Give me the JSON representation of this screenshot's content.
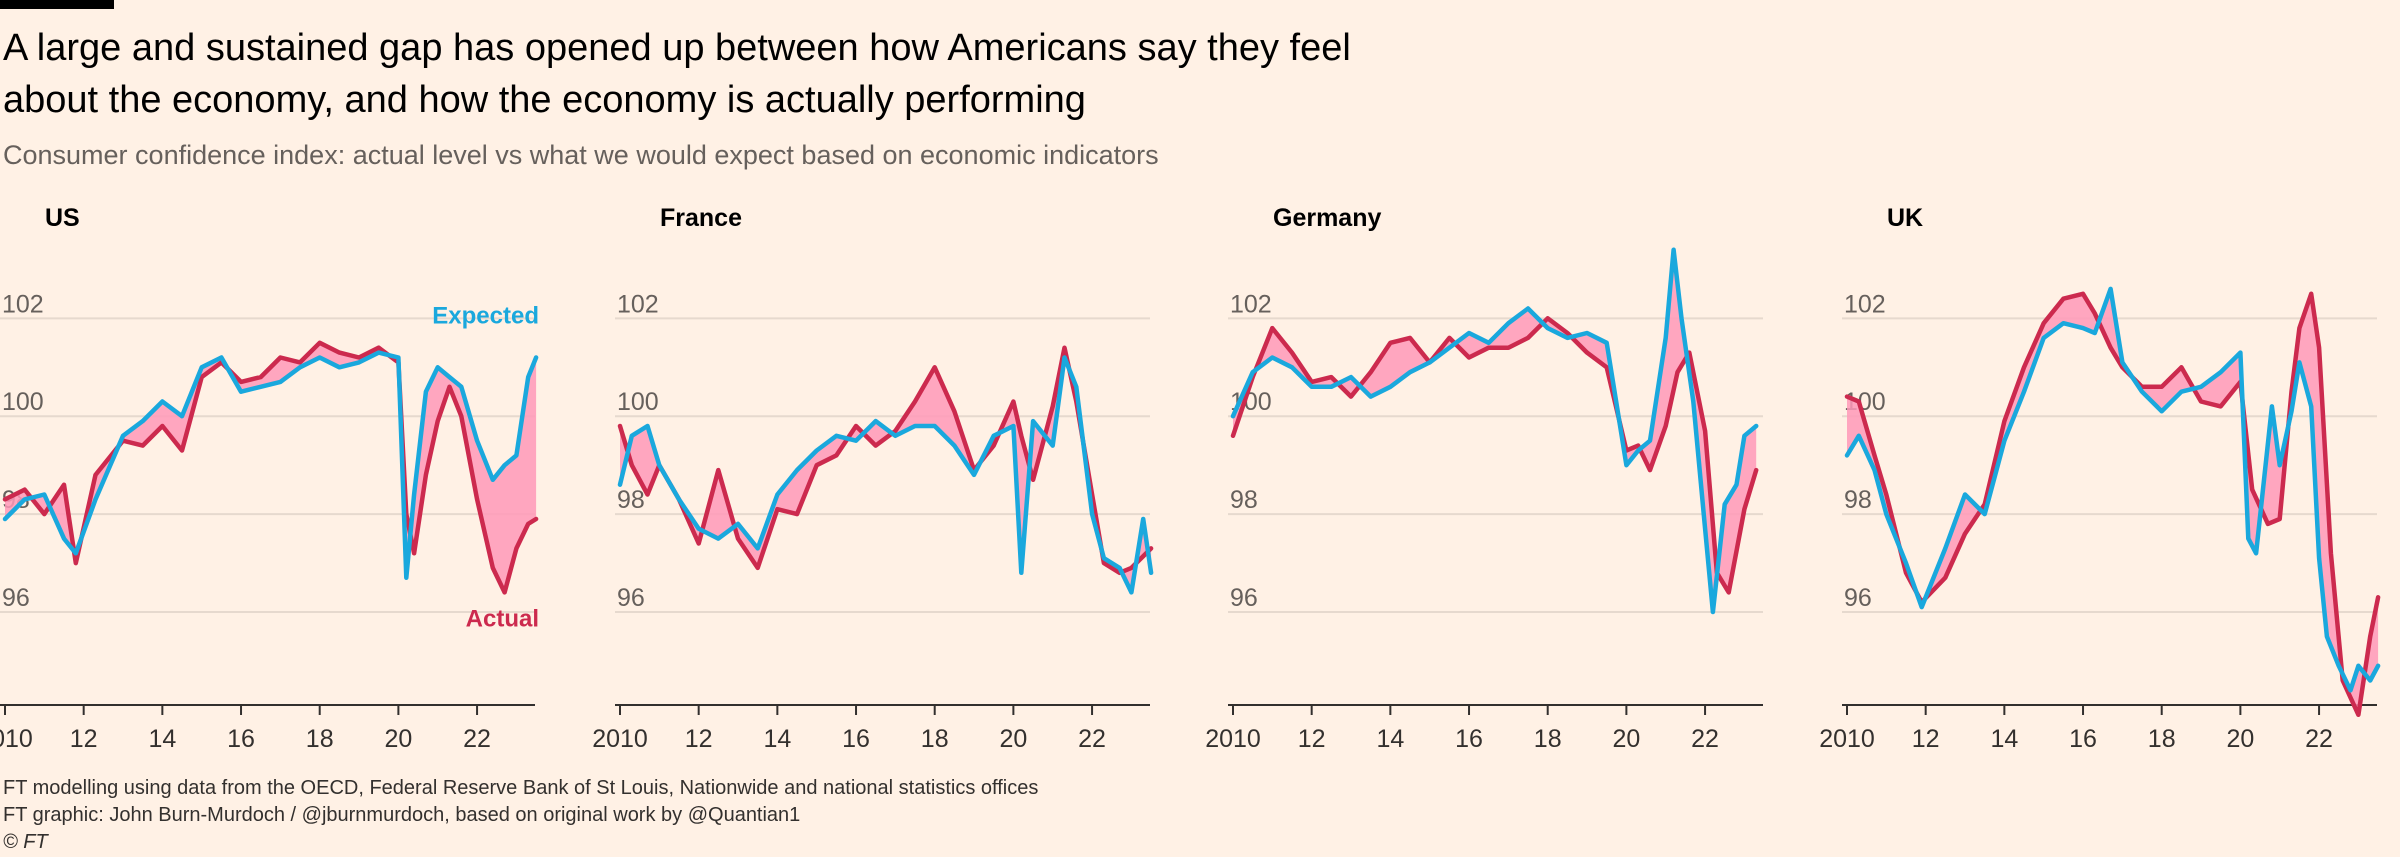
{
  "title": "A large and sustained gap has opened up between how Americans say they feel about the economy, and how the economy is actually performing",
  "subtitle": "Consumer confidence index: actual level vs what we would expect based on economic indicators",
  "footer": {
    "source": "FT modelling using data from the OECD, Federal Reserve Bank of St Louis, Nationwide and national statistics offices",
    "credit": "FT graphic: John Burn-Murdoch / @jburnmurdoch, based on original work by @Quantian1",
    "copyright": "© FT"
  },
  "colors": {
    "actual": "#CC2A4E",
    "expected": "#1AA8DD",
    "gap_fill": "#FF99B8",
    "grid": "#E6D9CE",
    "axis": "#33302E"
  },
  "chart_data": [
    {
      "type": "line",
      "title": "US",
      "xlim": [
        2010,
        2023.6
      ],
      "ylim": [
        94.1,
        103.6
      ],
      "x_ticks": [
        2010,
        2012,
        2014,
        2016,
        2018,
        2020,
        2022
      ],
      "x_tick_labels": [
        "2010",
        "12",
        "14",
        "16",
        "18",
        "20",
        "22"
      ],
      "y_ticks": [
        96,
        98,
        100,
        102
      ],
      "y_tick_labels": [
        "96",
        "98",
        "100",
        "102"
      ],
      "grid": true,
      "series_labels": {
        "expected": "Expected",
        "actual": "Actual"
      },
      "series": [
        {
          "key": "actual",
          "x": [
            2010,
            2010.5,
            2011,
            2011.5,
            2011.8,
            2012.3,
            2013,
            2013.5,
            2014,
            2014.5,
            2015,
            2015.5,
            2016,
            2016.5,
            2017,
            2017.5,
            2018,
            2018.5,
            2019,
            2019.5,
            2020,
            2020.2,
            2020.4,
            2020.7,
            2021,
            2021.3,
            2021.6,
            2022,
            2022.4,
            2022.7,
            2023,
            2023.3,
            2023.5
          ],
          "y": [
            98.3,
            98.5,
            98.0,
            98.6,
            97.0,
            98.8,
            99.5,
            99.4,
            99.8,
            99.3,
            100.8,
            101.1,
            100.7,
            100.8,
            101.2,
            101.1,
            101.5,
            101.3,
            101.2,
            101.4,
            101.1,
            98.0,
            97.2,
            98.8,
            99.9,
            100.6,
            100.0,
            98.3,
            96.9,
            96.4,
            97.3,
            97.8,
            97.9
          ]
        },
        {
          "key": "expected",
          "x": [
            2010,
            2010.5,
            2011,
            2011.5,
            2011.8,
            2012.3,
            2013,
            2013.5,
            2014,
            2014.5,
            2015,
            2015.5,
            2016,
            2016.5,
            2017,
            2017.5,
            2018,
            2018.5,
            2019,
            2019.5,
            2020,
            2020.2,
            2020.4,
            2020.7,
            2021,
            2021.3,
            2021.6,
            2022,
            2022.4,
            2022.7,
            2023,
            2023.3,
            2023.5
          ],
          "y": [
            97.9,
            98.3,
            98.4,
            97.5,
            97.2,
            98.3,
            99.6,
            99.9,
            100.3,
            100.0,
            101.0,
            101.2,
            100.5,
            100.6,
            100.7,
            101.0,
            101.2,
            101.0,
            101.1,
            101.3,
            101.2,
            96.7,
            98.4,
            100.5,
            101.0,
            100.8,
            100.6,
            99.5,
            98.7,
            99.0,
            99.2,
            100.8,
            101.2
          ]
        }
      ]
    },
    {
      "type": "line",
      "title": "France",
      "xlim": [
        2010,
        2023.6
      ],
      "ylim": [
        94.1,
        103.6
      ],
      "x_ticks": [
        2010,
        2012,
        2014,
        2016,
        2018,
        2020,
        2022
      ],
      "x_tick_labels": [
        "2010",
        "12",
        "14",
        "16",
        "18",
        "20",
        "22"
      ],
      "y_ticks": [
        96,
        98,
        100,
        102
      ],
      "y_tick_labels": [
        "96",
        "98",
        "100",
        "102"
      ],
      "grid": true,
      "series": [
        {
          "key": "actual",
          "x": [
            2010,
            2010.3,
            2010.7,
            2011,
            2011.5,
            2012,
            2012.5,
            2013,
            2013.5,
            2014,
            2014.5,
            2015,
            2015.5,
            2016,
            2016.5,
            2017,
            2017.5,
            2018,
            2018.5,
            2019,
            2019.5,
            2020,
            2020.2,
            2020.5,
            2021,
            2021.3,
            2021.6,
            2022,
            2022.3,
            2022.7,
            2023,
            2023.5
          ],
          "y": [
            99.8,
            99.0,
            98.4,
            99.0,
            98.3,
            97.4,
            98.9,
            97.5,
            96.9,
            98.1,
            98.0,
            99.0,
            99.2,
            99.8,
            99.4,
            99.7,
            100.3,
            101.0,
            100.1,
            98.9,
            99.4,
            100.3,
            99.6,
            98.7,
            100.2,
            101.4,
            100.3,
            98.4,
            97.0,
            96.8,
            96.9,
            97.3
          ]
        },
        {
          "key": "expected",
          "x": [
            2010,
            2010.3,
            2010.7,
            2011,
            2011.5,
            2012,
            2012.5,
            2013,
            2013.5,
            2014,
            2014.5,
            2015,
            2015.5,
            2016,
            2016.5,
            2017,
            2017.5,
            2018,
            2018.5,
            2019,
            2019.5,
            2020,
            2020.2,
            2020.5,
            2021,
            2021.3,
            2021.6,
            2022,
            2022.3,
            2022.7,
            2023,
            2023.3,
            2023.5
          ],
          "y": [
            98.6,
            99.6,
            99.8,
            99.0,
            98.3,
            97.7,
            97.5,
            97.8,
            97.3,
            98.4,
            98.9,
            99.3,
            99.6,
            99.5,
            99.9,
            99.6,
            99.8,
            99.8,
            99.4,
            98.8,
            99.6,
            99.8,
            96.8,
            99.9,
            99.4,
            101.2,
            100.6,
            98.0,
            97.1,
            96.9,
            96.4,
            97.9,
            96.8
          ]
        }
      ]
    },
    {
      "type": "line",
      "title": "Germany",
      "xlim": [
        2010,
        2023.6
      ],
      "ylim": [
        94.1,
        103.6
      ],
      "x_ticks": [
        2010,
        2012,
        2014,
        2016,
        2018,
        2020,
        2022
      ],
      "x_tick_labels": [
        "2010",
        "12",
        "14",
        "16",
        "18",
        "20",
        "22"
      ],
      "y_ticks": [
        96,
        98,
        100,
        102
      ],
      "y_tick_labels": [
        "96",
        "98",
        "100",
        "102"
      ],
      "grid": true,
      "series": [
        {
          "key": "actual",
          "x": [
            2010,
            2010.5,
            2011,
            2011.5,
            2012,
            2012.5,
            2013,
            2013.5,
            2014,
            2014.5,
            2015,
            2015.5,
            2016,
            2016.5,
            2017,
            2017.5,
            2018,
            2018.5,
            2019,
            2019.5,
            2020,
            2020.3,
            2020.6,
            2021,
            2021.3,
            2021.6,
            2022,
            2022.3,
            2022.6,
            2023,
            2023.3
          ],
          "y": [
            99.6,
            100.8,
            101.8,
            101.3,
            100.7,
            100.8,
            100.4,
            100.9,
            101.5,
            101.6,
            101.1,
            101.6,
            101.2,
            101.4,
            101.4,
            101.6,
            102.0,
            101.7,
            101.3,
            101.0,
            99.3,
            99.4,
            98.9,
            99.8,
            100.9,
            101.3,
            99.7,
            96.8,
            96.4,
            98.1,
            98.9
          ]
        },
        {
          "key": "expected",
          "x": [
            2010,
            2010.5,
            2011,
            2011.5,
            2012,
            2012.5,
            2013,
            2013.5,
            2014,
            2014.5,
            2015,
            2015.5,
            2016,
            2016.5,
            2017,
            2017.5,
            2018,
            2018.5,
            2019,
            2019.5,
            2020,
            2020.3,
            2020.6,
            2021,
            2021.2,
            2021.4,
            2021.7,
            2022,
            2022.2,
            2022.5,
            2022.8,
            2023,
            2023.3
          ],
          "y": [
            100.0,
            100.9,
            101.2,
            101.0,
            100.6,
            100.6,
            100.8,
            100.4,
            100.6,
            100.9,
            101.1,
            101.4,
            101.7,
            101.5,
            101.9,
            102.2,
            101.8,
            101.6,
            101.7,
            101.5,
            99.0,
            99.3,
            99.5,
            101.6,
            103.4,
            102.0,
            100.3,
            97.7,
            96.0,
            98.2,
            98.6,
            99.6,
            99.8
          ]
        }
      ]
    },
    {
      "type": "line",
      "title": "UK",
      "xlim": [
        2010,
        2023.6
      ],
      "ylim": [
        94.1,
        103.6
      ],
      "x_ticks": [
        2010,
        2012,
        2014,
        2016,
        2018,
        2020,
        2022
      ],
      "x_tick_labels": [
        "2010",
        "12",
        "14",
        "16",
        "18",
        "20",
        "22"
      ],
      "y_ticks": [
        96,
        98,
        100,
        102
      ],
      "y_tick_labels": [
        "96",
        "98",
        "100",
        "102"
      ],
      "grid": true,
      "series": [
        {
          "key": "actual",
          "x": [
            2010,
            2010.3,
            2010.7,
            2011,
            2011.5,
            2011.9,
            2012.5,
            2013,
            2013.5,
            2014,
            2014.5,
            2015,
            2015.5,
            2016,
            2016.3,
            2016.7,
            2017,
            2017.5,
            2018,
            2018.5,
            2019,
            2019.5,
            2020,
            2020.3,
            2020.7,
            2021,
            2021.3,
            2021.5,
            2021.8,
            2022,
            2022.3,
            2022.6,
            2023,
            2023.3,
            2023.5
          ],
          "y": [
            100.4,
            100.3,
            99.2,
            98.4,
            96.8,
            96.2,
            96.7,
            97.6,
            98.2,
            99.9,
            101.0,
            101.9,
            102.4,
            102.5,
            102.1,
            101.4,
            101.0,
            100.6,
            100.6,
            101.0,
            100.3,
            100.2,
            100.7,
            98.5,
            97.8,
            97.9,
            100.5,
            101.8,
            102.5,
            101.4,
            97.2,
            94.6,
            93.9,
            95.5,
            96.3
          ]
        },
        {
          "key": "expected",
          "x": [
            2010,
            2010.3,
            2010.7,
            2011,
            2011.5,
            2011.9,
            2012.5,
            2013,
            2013.5,
            2014,
            2014.5,
            2015,
            2015.5,
            2016,
            2016.3,
            2016.7,
            2017,
            2017.5,
            2018,
            2018.5,
            2019,
            2019.5,
            2020,
            2020.2,
            2020.4,
            2020.8,
            2021,
            2021.3,
            2021.5,
            2021.8,
            2022,
            2022.2,
            2022.5,
            2022.8,
            2023,
            2023.3,
            2023.5
          ],
          "y": [
            99.2,
            99.6,
            98.9,
            98.0,
            97.0,
            96.1,
            97.3,
            98.4,
            98.0,
            99.5,
            100.5,
            101.6,
            101.9,
            101.8,
            101.7,
            102.6,
            101.1,
            100.5,
            100.1,
            100.5,
            100.6,
            100.9,
            101.3,
            97.5,
            97.2,
            100.2,
            99.0,
            100.1,
            101.1,
            100.2,
            97.1,
            95.5,
            94.9,
            94.4,
            94.9,
            94.6,
            94.9
          ]
        }
      ]
    }
  ]
}
